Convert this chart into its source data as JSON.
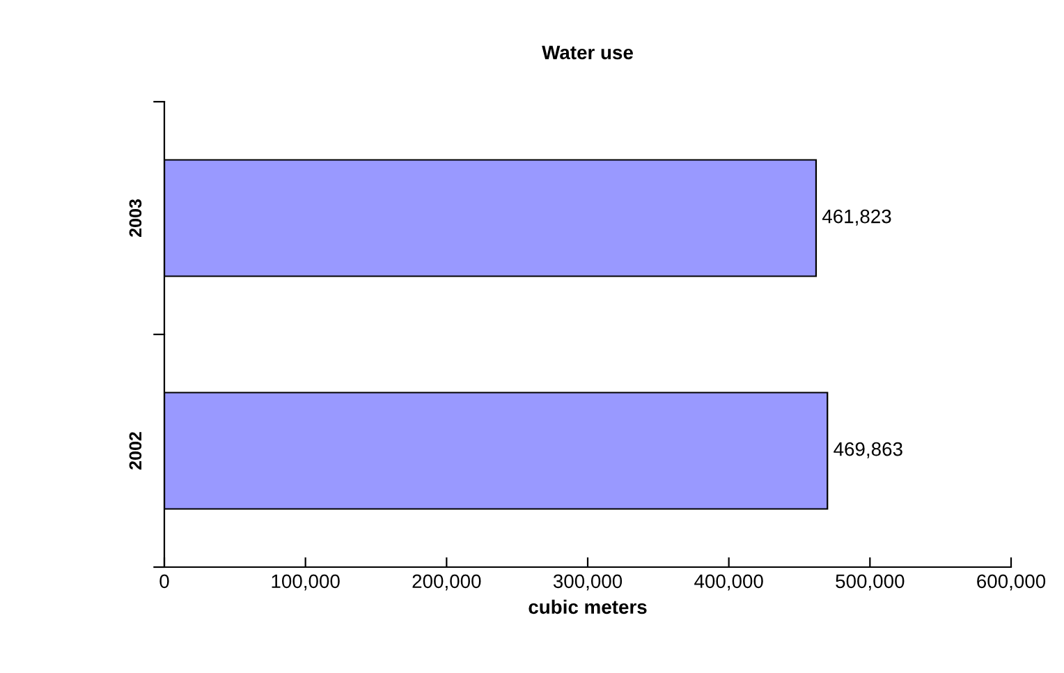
{
  "chart_data": {
    "type": "bar",
    "orientation": "horizontal",
    "title": "Water use",
    "xlabel": "cubic meters",
    "categories": [
      "2003",
      "2002"
    ],
    "values": [
      461823,
      469863
    ],
    "value_labels": [
      "461,823",
      "469,863"
    ],
    "color": "#9999ff",
    "xlim": [
      0,
      600000
    ],
    "xticks": [
      0,
      {
        "value": 100000,
        "label": "100,000"
      },
      {
        "value": 200000,
        "label": "200,000"
      },
      {
        "value": 300000,
        "label": "300,000"
      },
      {
        "value": 400000,
        "label": "400,000"
      },
      {
        "value": 500000,
        "label": "500,000"
      },
      {
        "value": 600000,
        "label": "600,000"
      }
    ],
    "grid": false,
    "legend": false
  }
}
